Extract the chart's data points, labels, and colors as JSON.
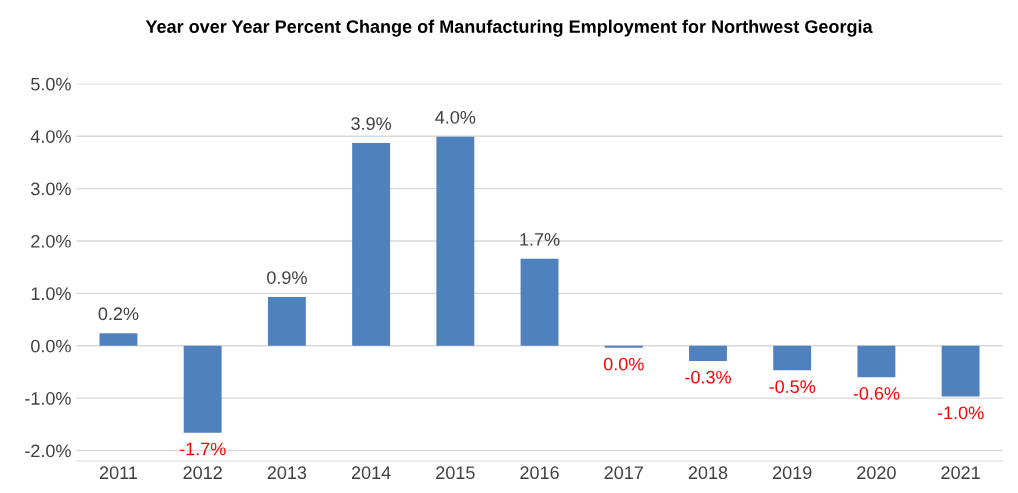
{
  "chart_data": {
    "type": "bar",
    "title": "Year over Year Percent Change of Manufacturing Employment for Northwest Georgia",
    "categories": [
      "2011",
      "2012",
      "2013",
      "2014",
      "2015",
      "2016",
      "2017",
      "2018",
      "2019",
      "2020",
      "2021"
    ],
    "values": [
      0.24,
      -1.66,
      0.93,
      3.87,
      3.99,
      1.66,
      -0.04,
      -0.29,
      -0.47,
      -0.6,
      -0.97
    ],
    "value_labels": [
      "0.2%",
      "-1.7%",
      "0.9%",
      "3.9%",
      "4.0%",
      "1.7%",
      "0.0%",
      "-0.3%",
      "-0.5%",
      "-0.6%",
      "-1.0%"
    ],
    "color": "#4f81bd",
    "ylim": [
      -2.2,
      5
    ],
    "yticks": [
      {
        "value": -2,
        "label": "-2.0%"
      },
      {
        "value": -1,
        "label": "-1.0%"
      },
      {
        "value": 0,
        "label": "0.0%"
      },
      {
        "value": 1,
        "label": "1.0%"
      },
      {
        "value": 2,
        "label": "2.0%"
      },
      {
        "value": 3,
        "label": "3.0%"
      },
      {
        "value": 4,
        "label": "4.0%"
      },
      {
        "value": 5,
        "label": "5.0%"
      }
    ],
    "grid": "y",
    "legend": false
  }
}
